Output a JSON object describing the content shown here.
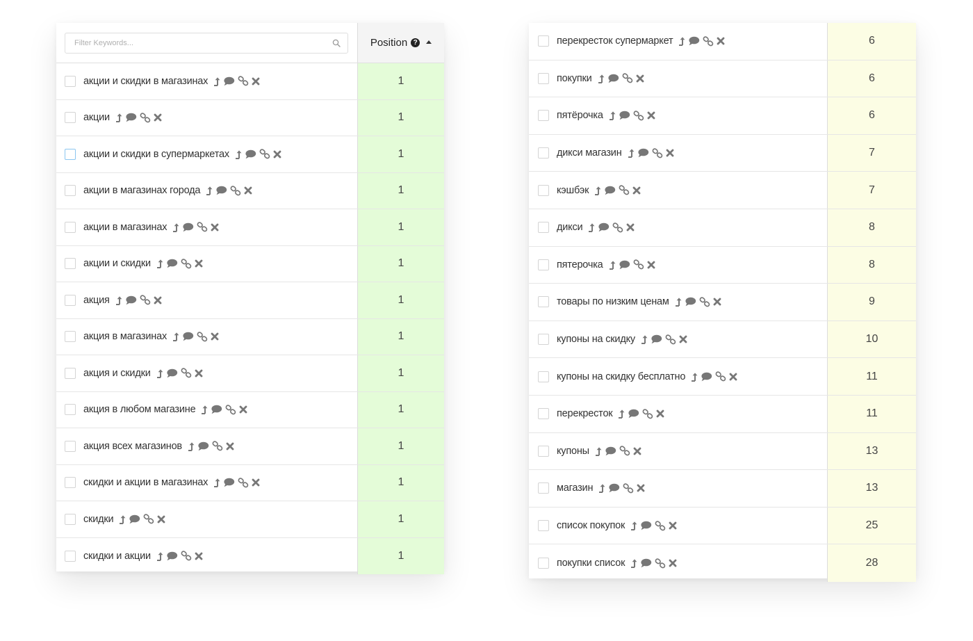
{
  "left_table": {
    "filter": {
      "placeholder": "Filter Keywords..."
    },
    "header": {
      "position_label": "Position"
    },
    "rows": [
      {
        "keyword": "акции и скидки в магазинах",
        "position": "1"
      },
      {
        "keyword": "акции",
        "position": "1"
      },
      {
        "keyword": "акции и скидки в супермаркетах",
        "position": "1"
      },
      {
        "keyword": "акции в магазинах города",
        "position": "1"
      },
      {
        "keyword": "акции в магазинах",
        "position": "1"
      },
      {
        "keyword": "акции и скидки",
        "position": "1"
      },
      {
        "keyword": "акция",
        "position": "1"
      },
      {
        "keyword": "акция в магазинах",
        "position": "1"
      },
      {
        "keyword": "акция и скидки",
        "position": "1"
      },
      {
        "keyword": "акция в любом магазине",
        "position": "1"
      },
      {
        "keyword": "акция всех магазинов",
        "position": "1"
      },
      {
        "keyword": "скидки и акции в магазинах",
        "position": "1"
      },
      {
        "keyword": "скидки",
        "position": "1"
      },
      {
        "keyword": "скидки и акции",
        "position": "1"
      }
    ]
  },
  "right_table": {
    "rows": [
      {
        "keyword": "перекресток супермаркет",
        "position": "6"
      },
      {
        "keyword": "покупки",
        "position": "6"
      },
      {
        "keyword": "пятёрочка",
        "position": "6"
      },
      {
        "keyword": "дикси магазин",
        "position": "7"
      },
      {
        "keyword": "кэшбэк",
        "position": "7"
      },
      {
        "keyword": "дикси",
        "position": "8"
      },
      {
        "keyword": "пятерочка",
        "position": "8"
      },
      {
        "keyword": "товары по низким ценам",
        "position": "9"
      },
      {
        "keyword": "купоны на скидку",
        "position": "10"
      },
      {
        "keyword": "купоны на скидку бесплатно",
        "position": "11"
      },
      {
        "keyword": "перекресток",
        "position": "11"
      },
      {
        "keyword": "купоны",
        "position": "13"
      },
      {
        "keyword": "магазин",
        "position": "13"
      },
      {
        "keyword": "список покупок",
        "position": "25"
      },
      {
        "keyword": "покупки список",
        "position": "28"
      }
    ]
  },
  "icons": {
    "row_actions": [
      "share-up-icon",
      "comment-icon",
      "link-icon",
      "remove-icon"
    ],
    "header": [
      "search-icon",
      "help-icon",
      "sort-ascending-icon"
    ]
  },
  "colors": {
    "top_positions_bg": "#e4fcd8",
    "other_positions_bg": "#fcfde4",
    "icon_gray": "#777777"
  }
}
